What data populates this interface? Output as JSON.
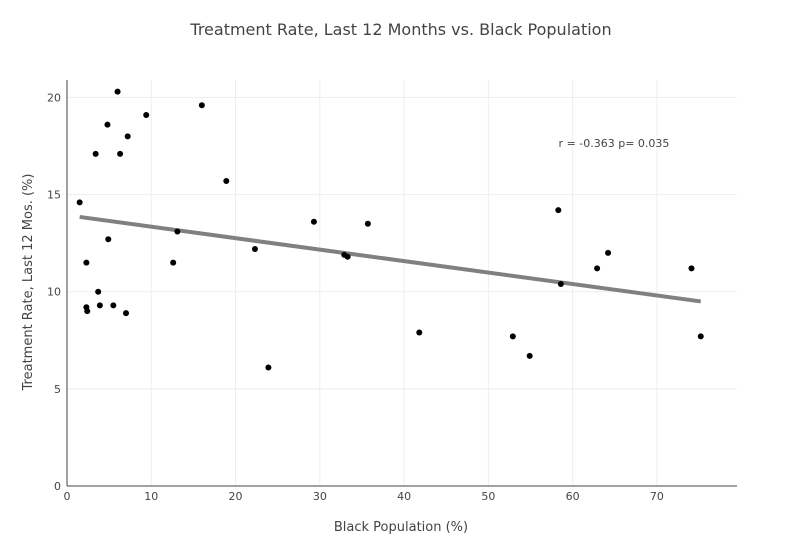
{
  "chart_data": {
    "type": "scatter",
    "title": "Treatment Rate, Last 12 Months vs. Black Population",
    "xlabel": "Black Population (%)",
    "ylabel": "Treatment Rate, Last 12 Mos. (%)",
    "xlim": [
      0,
      79.5
    ],
    "ylim": [
      0,
      20.9
    ],
    "x_ticks": [
      0,
      10,
      20,
      30,
      40,
      50,
      60,
      70
    ],
    "y_ticks": [
      0,
      5,
      10,
      15,
      20
    ],
    "grid": true,
    "marker_color": "#000000",
    "trendline_color": "#808080",
    "annotation": "r = -0.363 p= 0.035",
    "points": [
      {
        "x": 1.5,
        "y": 14.6
      },
      {
        "x": 2.3,
        "y": 11.5
      },
      {
        "x": 2.3,
        "y": 9.2
      },
      {
        "x": 2.4,
        "y": 9.0
      },
      {
        "x": 3.4,
        "y": 17.1
      },
      {
        "x": 3.7,
        "y": 10.0
      },
      {
        "x": 3.9,
        "y": 9.3
      },
      {
        "x": 4.8,
        "y": 18.6
      },
      {
        "x": 4.9,
        "y": 12.7
      },
      {
        "x": 5.5,
        "y": 9.3
      },
      {
        "x": 6.0,
        "y": 20.3
      },
      {
        "x": 6.3,
        "y": 17.1
      },
      {
        "x": 7.0,
        "y": 8.9
      },
      {
        "x": 7.2,
        "y": 18.0
      },
      {
        "x": 9.4,
        "y": 19.1
      },
      {
        "x": 12.6,
        "y": 11.5
      },
      {
        "x": 13.1,
        "y": 13.1
      },
      {
        "x": 16.0,
        "y": 19.6
      },
      {
        "x": 18.9,
        "y": 15.7
      },
      {
        "x": 22.3,
        "y": 12.2
      },
      {
        "x": 23.9,
        "y": 6.1
      },
      {
        "x": 29.3,
        "y": 13.6
      },
      {
        "x": 32.9,
        "y": 11.9
      },
      {
        "x": 33.3,
        "y": 11.8
      },
      {
        "x": 35.7,
        "y": 13.5
      },
      {
        "x": 41.8,
        "y": 7.9
      },
      {
        "x": 52.9,
        "y": 7.7
      },
      {
        "x": 54.9,
        "y": 6.7
      },
      {
        "x": 58.3,
        "y": 14.2
      },
      {
        "x": 58.6,
        "y": 10.4
      },
      {
        "x": 62.9,
        "y": 11.2
      },
      {
        "x": 64.2,
        "y": 12.0
      },
      {
        "x": 74.1,
        "y": 11.2
      },
      {
        "x": 75.2,
        "y": 7.7
      }
    ],
    "trendline": [
      {
        "x": 1.5,
        "y": 13.85
      },
      {
        "x": 75.2,
        "y": 9.5
      }
    ]
  }
}
